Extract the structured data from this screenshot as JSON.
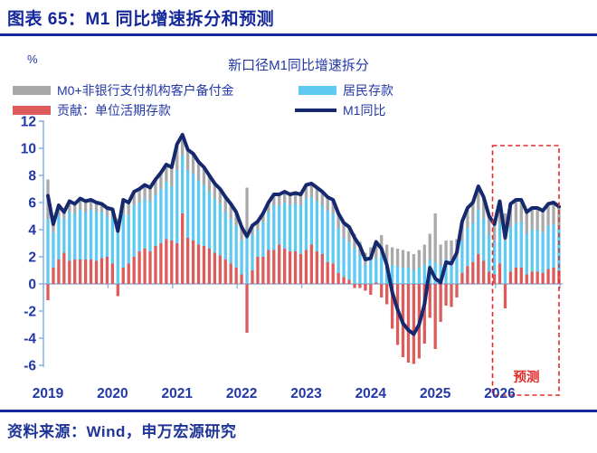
{
  "header": {
    "title": "图表 65：M1 同比增速拆分和预测"
  },
  "chart": {
    "unit": "%",
    "title": "新口径M1同比增速拆分",
    "legend": [
      {
        "label": "M0+非银行支付机构客户备付金",
        "color": "#A9A9A9",
        "type": "bar"
      },
      {
        "label": "居民存款",
        "color": "#5EC9F1",
        "type": "bar"
      },
      {
        "label": "贡献：单位活期存款",
        "color": "#DE5B5B",
        "type": "bar"
      },
      {
        "label": "M1同比",
        "color": "#16296F",
        "type": "line"
      }
    ]
  },
  "footer": {
    "source": "资料来源：Wind，申万宏源研究"
  },
  "chart_data": {
    "type": "bar",
    "subtype": "stacked-bars-with-line",
    "title": "新口径M1同比增速拆分",
    "ylabel": "%",
    "ylim": [
      -6,
      12
    ],
    "y_ticks": [
      -6,
      -4,
      -2,
      0,
      2,
      4,
      6,
      8,
      10,
      12
    ],
    "x_labels": [
      "2019",
      "2020",
      "2021",
      "2022",
      "2023",
      "2024",
      "2025",
      "2026"
    ],
    "x_frequency": "monthly",
    "x_start": "2019-01",
    "x_end": "2026-12",
    "grid": false,
    "legend_position": "top",
    "forecast": {
      "label": "预测",
      "start": "2026-01",
      "end": "2026-12"
    },
    "colors": {
      "red": "#DE5B5B",
      "blue": "#5EC9F1",
      "gray": "#A9A9A9",
      "line": "#16296F",
      "axis": "#8DB4E2",
      "axis_text": "#2438A5",
      "forecast": "#E02B2B"
    },
    "series": [
      {
        "name": "贡献：单位活期存款",
        "type": "bar",
        "color": "#DE5B5B",
        "values": [
          -1.2,
          1.2,
          1.8,
          2.3,
          1.7,
          1.8,
          1.8,
          1.8,
          1.8,
          1.7,
          1.9,
          2.0,
          1.5,
          -0.9,
          1.2,
          1.5,
          2.0,
          2.4,
          2.6,
          2.4,
          2.8,
          3.0,
          3.3,
          3.2,
          3.0,
          5.2,
          3.4,
          3.2,
          2.9,
          2.8,
          2.6,
          2.3,
          2.1,
          1.8,
          1.5,
          1.2,
          0.7,
          -3.6,
          1.0,
          2.0,
          2.0,
          2.5,
          2.5,
          2.9,
          2.6,
          2.4,
          2.4,
          2.2,
          2.5,
          2.9,
          2.4,
          2.2,
          1.6,
          1.5,
          0.8,
          0.5,
          0.3,
          -0.3,
          -0.3,
          -0.5,
          -0.8,
          0.1,
          -1.0,
          -1.5,
          -3.3,
          -4.5,
          -5.4,
          -5.8,
          -5.9,
          -5.5,
          -4.4,
          -2.5,
          -4.8,
          -2.8,
          -1.6,
          -1.7,
          -1.0,
          0.8,
          1.3,
          1.6,
          2.2,
          1.7,
          0.9,
          0.7,
          1.5,
          -1.8,
          0.9,
          1.2,
          1.2,
          0.7,
          0.9,
          0.9,
          0.8,
          1.1,
          1.2,
          1.0
        ]
      },
      {
        "name": "居民存款",
        "type": "bar",
        "color": "#5EC9F1",
        "values": [
          4.8,
          2.6,
          3.2,
          2.5,
          3.6,
          3.4,
          3.7,
          3.5,
          3.7,
          3.6,
          3.4,
          3.0,
          3.3,
          3.8,
          4.0,
          3.6,
          3.8,
          3.6,
          3.7,
          3.7,
          3.8,
          4.0,
          4.2,
          4.0,
          5.4,
          4.3,
          5.0,
          4.9,
          4.7,
          4.5,
          4.2,
          4.0,
          3.8,
          3.5,
          3.3,
          3.1,
          2.5,
          3.5,
          2.6,
          2.0,
          2.6,
          2.8,
          3.3,
          2.9,
          3.4,
          3.4,
          3.5,
          3.6,
          3.8,
          3.5,
          3.7,
          3.6,
          3.8,
          3.7,
          3.3,
          2.9,
          2.8,
          2.6,
          2.1,
          1.4,
          1.7,
          1.8,
          2.2,
          1.6,
          1.4,
          1.3,
          1.2,
          1.2,
          1.0,
          1.2,
          1.4,
          1.8,
          1.6,
          1.4,
          1.8,
          1.8,
          1.9,
          2.4,
          2.8,
          2.9,
          3.3,
          3.1,
          2.7,
          2.4,
          3.0,
          3.2,
          3.3,
          3.3,
          3.4,
          3.0,
          3.1,
          3.1,
          3.0,
          3.2,
          3.2,
          3.1
        ]
      },
      {
        "name": "M0+非银行支付机构客户备付金",
        "type": "bar",
        "color": "#A9A9A9",
        "values": [
          2.9,
          0.6,
          0.8,
          0.5,
          0.8,
          0.7,
          0.8,
          0.8,
          0.7,
          0.7,
          0.6,
          0.6,
          0.7,
          1.0,
          1.0,
          0.9,
          1.0,
          1.0,
          1.0,
          1.0,
          1.1,
          1.2,
          1.3,
          1.4,
          1.9,
          1.5,
          1.5,
          1.5,
          1.4,
          1.3,
          1.2,
          1.1,
          1.1,
          1.1,
          1.1,
          1.0,
          1.0,
          3.6,
          0.7,
          0.6,
          0.6,
          0.7,
          0.8,
          0.8,
          0.8,
          0.8,
          0.8,
          0.8,
          1.0,
          1.0,
          1.0,
          1.0,
          1.0,
          1.0,
          1.1,
          1.1,
          1.1,
          1.1,
          1.0,
          0.9,
          1.0,
          1.2,
          1.4,
          1.3,
          1.3,
          1.3,
          1.3,
          1.2,
          1.2,
          1.3,
          1.5,
          1.9,
          3.6,
          1.5,
          1.4,
          1.4,
          1.4,
          1.4,
          1.5,
          1.5,
          1.7,
          1.6,
          1.4,
          1.3,
          1.6,
          2.0,
          1.7,
          1.7,
          1.6,
          1.6,
          1.6,
          1.6,
          1.6,
          1.6,
          1.6,
          1.6
        ]
      },
      {
        "name": "M1同比",
        "type": "line",
        "color": "#16296F",
        "values": [
          6.5,
          4.4,
          5.8,
          5.3,
          6.1,
          5.9,
          6.3,
          6.1,
          6.2,
          6.0,
          5.9,
          5.6,
          5.5,
          3.9,
          6.2,
          6.0,
          6.8,
          7.0,
          7.3,
          7.1,
          7.7,
          8.2,
          8.8,
          8.6,
          10.3,
          11.0,
          9.9,
          9.6,
          9.0,
          8.6,
          8.0,
          7.4,
          7.0,
          6.4,
          5.9,
          5.3,
          4.2,
          3.5,
          4.3,
          4.6,
          5.2,
          6.0,
          6.6,
          6.6,
          6.8,
          6.6,
          6.7,
          6.6,
          7.3,
          7.4,
          7.1,
          6.8,
          6.4,
          6.2,
          5.2,
          4.5,
          4.2,
          3.4,
          2.8,
          1.8,
          1.9,
          3.1,
          2.6,
          1.4,
          -0.6,
          -1.9,
          -2.9,
          -3.4,
          -3.7,
          -3.0,
          -1.5,
          1.2,
          0.4,
          0.1,
          1.6,
          1.5,
          2.3,
          4.6,
          5.6,
          6.0,
          7.2,
          6.4,
          5.0,
          4.4,
          6.1,
          3.4,
          5.9,
          6.2,
          6.2,
          5.3,
          5.6,
          5.6,
          5.4,
          5.9,
          6.0,
          5.7
        ]
      }
    ]
  }
}
